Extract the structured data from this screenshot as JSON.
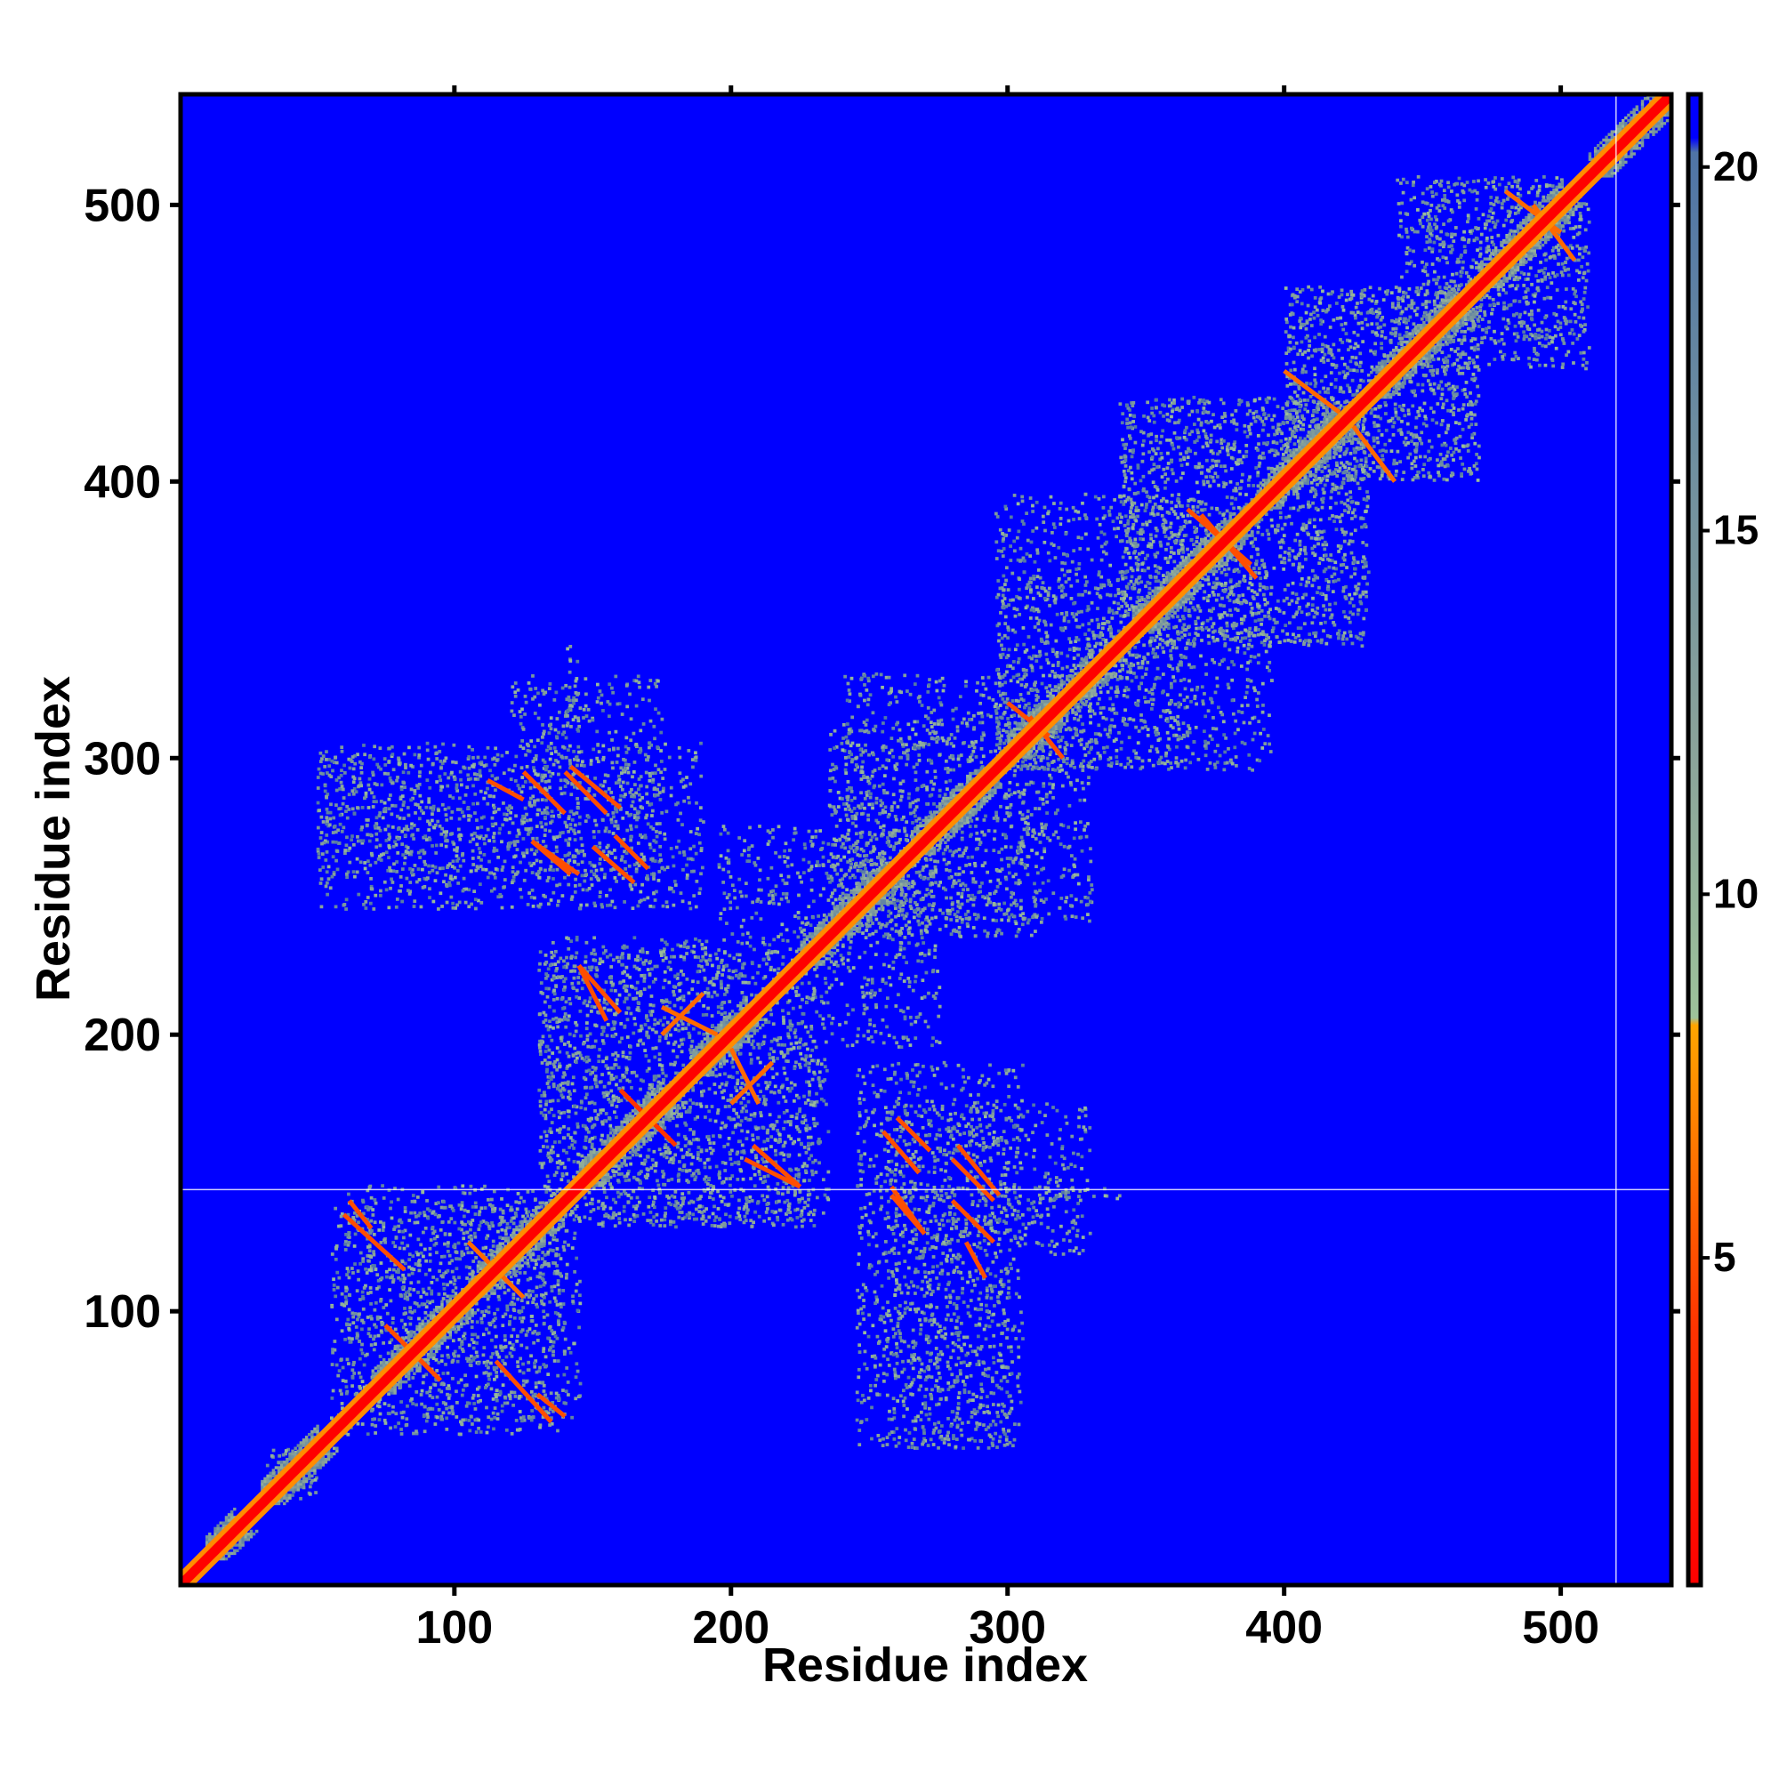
{
  "chart_data": {
    "type": "heatmap",
    "title": "",
    "xlabel": "Residue index",
    "ylabel": "Residue index",
    "xlim": [
      1,
      540
    ],
    "ylim": [
      1,
      540
    ],
    "x_ticks": [
      100,
      200,
      300,
      400,
      500
    ],
    "y_ticks": [
      100,
      200,
      300,
      400,
      500
    ],
    "colorbar": {
      "range": [
        0.5,
        21
      ],
      "ticks": [
        5,
        10,
        15,
        20
      ],
      "stops": [
        {
          "value": 0.5,
          "color": "#ff0000"
        },
        {
          "value": 4,
          "color": "#ff3300"
        },
        {
          "value": 8.2,
          "color": "#ffa500"
        },
        {
          "value": 8.3,
          "color": "#9dc29a"
        },
        {
          "value": 12,
          "color": "#8aa39a"
        },
        {
          "value": 16,
          "color": "#6f8fa0"
        },
        {
          "value": 20.2,
          "color": "#4f74a6"
        },
        {
          "value": 20.4,
          "color": "#0000ff"
        },
        {
          "value": 21,
          "color": "#0000ff"
        }
      ]
    },
    "background_color": "#0000ff",
    "diagonal": {
      "from": 1,
      "to": 540,
      "color": "#ff0000"
    },
    "helices_along_diagonal": [
      [
        10,
        20
      ],
      [
        30,
        50
      ],
      [
        70,
        100
      ],
      [
        105,
        130
      ],
      [
        145,
        175
      ],
      [
        185,
        205
      ],
      [
        225,
        255
      ],
      [
        265,
        290
      ],
      [
        300,
        330
      ],
      [
        345,
        380
      ],
      [
        390,
        420
      ],
      [
        430,
        460
      ],
      [
        470,
        500
      ],
      [
        510,
        535
      ]
    ],
    "contact_streaks": [
      {
        "x": [
          62,
          70
        ],
        "y": [
          140,
          130
        ],
        "value": 5
      },
      {
        "x": [
          75,
          92
        ],
        "y": [
          95,
          78
        ],
        "value": 5
      },
      {
        "x": [
          110,
          125
        ],
        "y": [
          120,
          105
        ],
        "value": 6
      },
      {
        "x": [
          115,
          135
        ],
        "y": [
          82,
          60
        ],
        "value": 5
      },
      {
        "x": [
          145,
          160
        ],
        "y": [
          225,
          208
        ],
        "value": 5
      },
      {
        "x": [
          160,
          180
        ],
        "y": [
          180,
          160
        ],
        "value": 4
      },
      {
        "x": [
          175,
          195
        ],
        "y": [
          210,
          200
        ],
        "value": 6
      },
      {
        "x": [
          205,
          225
        ],
        "y": [
          155,
          145
        ],
        "value": 5
      },
      {
        "x": [
          200,
          215
        ],
        "y": [
          175,
          190
        ],
        "value": 6
      },
      {
        "x": [
          125,
          140
        ],
        "y": [
          295,
          280
        ],
        "value": 5
      },
      {
        "x": [
          128,
          145
        ],
        "y": [
          270,
          258
        ],
        "value": 5
      },
      {
        "x": [
          142,
          160
        ],
        "y": [
          297,
          282
        ],
        "value": 5
      },
      {
        "x": [
          158,
          170
        ],
        "y": [
          272,
          260
        ],
        "value": 5
      },
      {
        "x": [
          255,
          268
        ],
        "y": [
          165,
          150
        ],
        "value": 5
      },
      {
        "x": [
          258,
          270
        ],
        "y": [
          142,
          128
        ],
        "value": 5
      },
      {
        "x": [
          280,
          295
        ],
        "y": [
          155,
          140
        ],
        "value": 5
      },
      {
        "x": [
          285,
          292
        ],
        "y": [
          125,
          112
        ],
        "value": 5
      },
      {
        "x": [
          308,
          320
        ],
        "y": [
          315,
          300
        ],
        "value": 5
      },
      {
        "x": [
          365,
          388
        ],
        "y": [
          390,
          370
        ],
        "value": 5
      },
      {
        "x": [
          400,
          420
        ],
        "y": [
          440,
          425
        ],
        "value": 6
      },
      {
        "x": [
          480,
          500
        ],
        "y": [
          505,
          490
        ],
        "value": 6
      }
    ],
    "contact_clusters": [
      {
        "x": [
          35,
          50
        ],
        "y": [
          30,
          50
        ]
      },
      {
        "x": [
          55,
          100
        ],
        "y": [
          60,
          140
        ]
      },
      {
        "x": [
          100,
          145
        ],
        "y": [
          60,
          140
        ]
      },
      {
        "x": [
          130,
          235
        ],
        "y": [
          130,
          230
        ]
      },
      {
        "x": [
          120,
          175
        ],
        "y": [
          255,
          330
        ]
      },
      {
        "x": [
          50,
          115
        ],
        "y": [
          258,
          300
        ]
      },
      {
        "x": [
          245,
          305
        ],
        "y": [
          50,
          190
        ]
      },
      {
        "x": [
          195,
          265
        ],
        "y": [
          235,
          275
        ]
      },
      {
        "x": [
          235,
          330
        ],
        "y": [
          240,
          310
        ]
      },
      {
        "x": [
          295,
          395
        ],
        "y": [
          295,
          365
        ]
      },
      {
        "x": [
          340,
          430
        ],
        "y": [
          340,
          430
        ]
      },
      {
        "x": [
          400,
          470
        ],
        "y": [
          400,
          470
        ]
      },
      {
        "x": [
          450,
          510
        ],
        "y": [
          440,
          510
        ]
      },
      {
        "x": [
          300,
          340
        ],
        "y": [
          140,
          145
        ]
      }
    ],
    "reference_lines": [
      {
        "orientation": "horizontal",
        "at": 144
      },
      {
        "orientation": "vertical",
        "at": 520
      }
    ]
  }
}
